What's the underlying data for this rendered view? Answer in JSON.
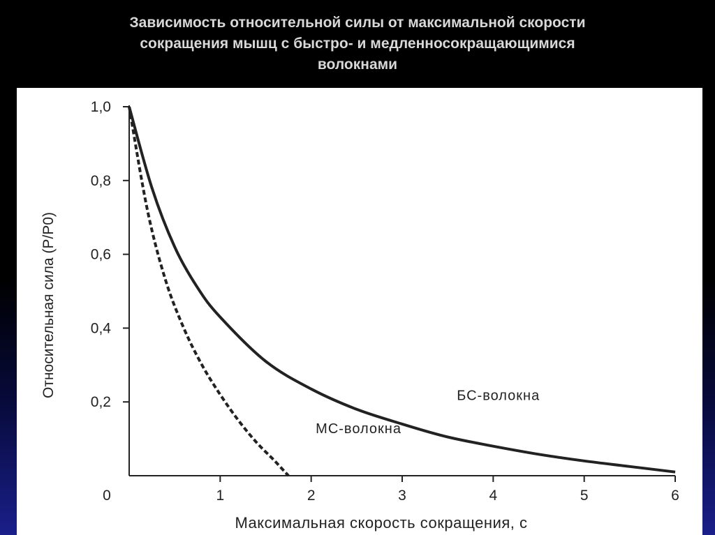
{
  "slide": {
    "title_lines": [
      "Зависимость относительной силы от максимальной скорости",
      "сокращения мышц с быстро- и медленносокращающимися",
      "волокнами"
    ]
  },
  "colors": {
    "background": "#000000",
    "background_bottom": "#1a1f8a",
    "title_text": "#d8d8d8",
    "chart_background": "#ffffff",
    "ink": "#222222"
  },
  "chart_data": {
    "type": "line",
    "title": "Зависимость относительной силы от максимальной скорости сокращения мышц с быстро- и медленносокращающимися волокнами",
    "xlabel": "Максимальная скорость сокращения, с",
    "ylabel": "Относительная сила (P/P0)",
    "xlim": [
      0,
      6
    ],
    "ylim": [
      0,
      1.0
    ],
    "grid": false,
    "x_tick_labels": [
      "0",
      "1",
      "2",
      "3",
      "4",
      "5",
      "6"
    ],
    "y_tick_labels": [
      "0,2",
      "0,4",
      "0,6",
      "0,8",
      "1,0"
    ],
    "y_tick_values": [
      0.2,
      0.4,
      0.6,
      0.8,
      1.0
    ],
    "series": [
      {
        "name": "БС-волокна",
        "style": "solid",
        "x": [
          0.0,
          0.25,
          0.5,
          0.75,
          1.0,
          1.5,
          2.0,
          2.5,
          3.0,
          3.5,
          4.0,
          4.5,
          5.0,
          5.5,
          6.0
        ],
        "y": [
          1.0,
          0.78,
          0.62,
          0.51,
          0.43,
          0.31,
          0.235,
          0.18,
          0.14,
          0.105,
          0.08,
          0.058,
          0.04,
          0.025,
          0.01
        ]
      },
      {
        "name": "МС-волокна",
        "style": "dashed",
        "x": [
          0.0,
          0.2,
          0.4,
          0.6,
          0.8,
          1.0,
          1.2,
          1.4,
          1.6,
          1.75
        ],
        "y": [
          1.0,
          0.72,
          0.53,
          0.4,
          0.3,
          0.22,
          0.15,
          0.09,
          0.04,
          0.0
        ]
      }
    ],
    "annotations": [
      {
        "text": "БС-волокна",
        "x": 3.6,
        "y": 0.205
      },
      {
        "text": "МС-волокна",
        "x": 2.05,
        "y": 0.115
      }
    ]
  }
}
